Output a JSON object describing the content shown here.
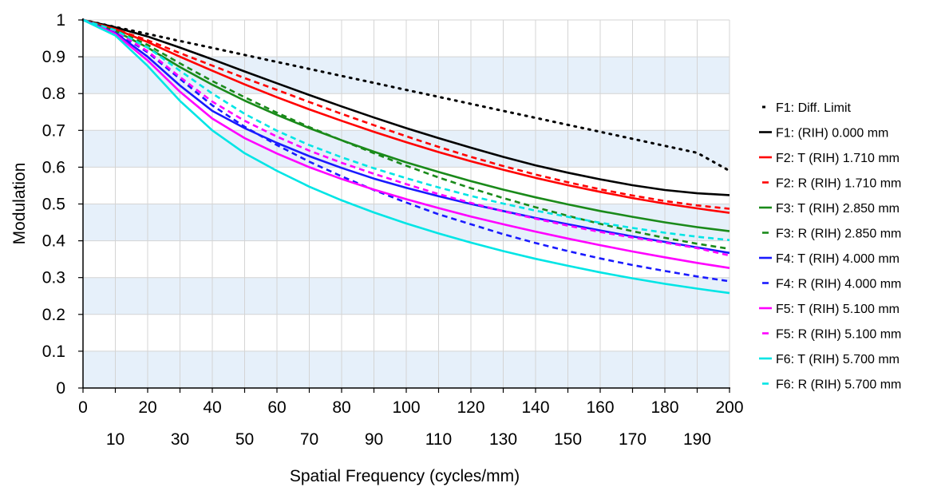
{
  "chart_data": {
    "type": "line",
    "title": "",
    "xlabel": "Spatial Frequency (cycles/mm)",
    "ylabel": "Modulation",
    "xlim": [
      0,
      200
    ],
    "ylim": [
      0,
      1
    ],
    "x_ticks_top_row": [
      "0",
      "20",
      "40",
      "60",
      "80",
      "100",
      "120",
      "140",
      "160",
      "180",
      "200"
    ],
    "x_ticks_bottom_row": [
      "10",
      "30",
      "50",
      "70",
      "90",
      "110",
      "130",
      "150",
      "170",
      "190"
    ],
    "y_ticks": [
      "0",
      "0.1",
      "0.2",
      "0.3",
      "0.4",
      "0.5",
      "0.6",
      "0.7",
      "0.8",
      "0.9",
      "1"
    ],
    "grid": true,
    "background_bands": [
      "#ffffff",
      "#e6f0fa"
    ],
    "legend_position": "right",
    "x": [
      0,
      10,
      20,
      30,
      40,
      50,
      60,
      70,
      80,
      90,
      100,
      110,
      120,
      130,
      140,
      150,
      160,
      170,
      180,
      190,
      200
    ],
    "series": [
      {
        "name": "F1: Diff. Limit",
        "color": "#000000",
        "style": "dotted",
        "values": [
          1.0,
          0.981,
          0.962,
          0.943,
          0.924,
          0.905,
          0.886,
          0.867,
          0.848,
          0.829,
          0.81,
          0.791,
          0.772,
          0.753,
          0.734,
          0.715,
          0.696,
          0.677,
          0.658,
          0.639,
          0.59
        ]
      },
      {
        "name": "F1: (RIH) 0.000 mm",
        "color": "#000000",
        "style": "solid",
        "values": [
          1.0,
          0.98,
          0.955,
          0.925,
          0.893,
          0.86,
          0.828,
          0.796,
          0.765,
          0.735,
          0.706,
          0.679,
          0.653,
          0.628,
          0.605,
          0.585,
          0.567,
          0.551,
          0.538,
          0.529,
          0.524
        ]
      },
      {
        "name": "F2: T (RIH) 1.710 mm",
        "color": "#ff0000",
        "style": "solid",
        "values": [
          1.0,
          0.975,
          0.94,
          0.9,
          0.862,
          0.825,
          0.79,
          0.757,
          0.726,
          0.696,
          0.668,
          0.641,
          0.616,
          0.593,
          0.571,
          0.551,
          0.533,
          0.516,
          0.501,
          0.488,
          0.476
        ]
      },
      {
        "name": "F2: R (RIH) 1.710 mm",
        "color": "#ff0000",
        "style": "dashed",
        "values": [
          1.0,
          0.975,
          0.945,
          0.91,
          0.876,
          0.842,
          0.81,
          0.777,
          0.745,
          0.714,
          0.684,
          0.655,
          0.628,
          0.603,
          0.58,
          0.559,
          0.54,
          0.523,
          0.508,
          0.496,
          0.487
        ]
      },
      {
        "name": "F3: T (RIH) 2.850 mm",
        "color": "#1a8a1a",
        "style": "solid",
        "values": [
          1.0,
          0.97,
          0.925,
          0.872,
          0.824,
          0.781,
          0.742,
          0.706,
          0.673,
          0.642,
          0.613,
          0.587,
          0.562,
          0.539,
          0.518,
          0.499,
          0.481,
          0.465,
          0.45,
          0.437,
          0.426
        ]
      },
      {
        "name": "F3: R (RIH) 2.850 mm",
        "color": "#1a8a1a",
        "style": "dashed",
        "values": [
          1.0,
          0.972,
          0.932,
          0.882,
          0.834,
          0.79,
          0.748,
          0.709,
          0.673,
          0.638,
          0.604,
          0.572,
          0.543,
          0.516,
          0.491,
          0.468,
          0.446,
          0.426,
          0.408,
          0.392,
          0.378
        ]
      },
      {
        "name": "F4: T (RIH) 4.000 mm",
        "color": "#1a1aff",
        "style": "solid",
        "values": [
          1.0,
          0.965,
          0.9,
          0.822,
          0.753,
          0.706,
          0.666,
          0.63,
          0.598,
          0.569,
          0.544,
          0.521,
          0.5,
          0.481,
          0.462,
          0.445,
          0.428,
          0.412,
          0.397,
          0.382,
          0.367
        ]
      },
      {
        "name": "F4: R (RIH) 4.000 mm",
        "color": "#1a1aff",
        "style": "dashed",
        "values": [
          1.0,
          0.968,
          0.912,
          0.84,
          0.768,
          0.71,
          0.66,
          0.615,
          0.575,
          0.538,
          0.504,
          0.472,
          0.445,
          0.418,
          0.394,
          0.372,
          0.352,
          0.334,
          0.318,
          0.303,
          0.29
        ]
      },
      {
        "name": "F5: T (RIH) 5.100 mm",
        "color": "#ff00ff",
        "style": "solid",
        "values": [
          1.0,
          0.962,
          0.89,
          0.805,
          0.732,
          0.679,
          0.637,
          0.6,
          0.568,
          0.539,
          0.513,
          0.489,
          0.466,
          0.445,
          0.425,
          0.406,
          0.388,
          0.371,
          0.355,
          0.34,
          0.326
        ]
      },
      {
        "name": "F5: R (RIH) 5.100 mm",
        "color": "#ff00ff",
        "style": "dashed",
        "values": [
          1.0,
          0.97,
          0.915,
          0.845,
          0.778,
          0.726,
          0.683,
          0.645,
          0.612,
          0.582,
          0.554,
          0.527,
          0.503,
          0.48,
          0.46,
          0.441,
          0.424,
          0.409,
          0.395,
          0.38,
          0.36
        ]
      },
      {
        "name": "F6: T (RIH) 5.700 mm",
        "color": "#00e5e5",
        "style": "solid",
        "values": [
          1.0,
          0.958,
          0.875,
          0.78,
          0.7,
          0.638,
          0.59,
          0.547,
          0.51,
          0.477,
          0.447,
          0.42,
          0.395,
          0.372,
          0.351,
          0.332,
          0.314,
          0.298,
          0.283,
          0.27,
          0.258
        ]
      },
      {
        "name": "F6: R (RIH) 5.700 mm",
        "color": "#00e5e5",
        "style": "dashed",
        "values": [
          1.0,
          0.972,
          0.925,
          0.862,
          0.8,
          0.745,
          0.699,
          0.66,
          0.627,
          0.597,
          0.57,
          0.545,
          0.522,
          0.501,
          0.482,
          0.465,
          0.449,
          0.435,
          0.422,
          0.411,
          0.402
        ]
      }
    ]
  }
}
